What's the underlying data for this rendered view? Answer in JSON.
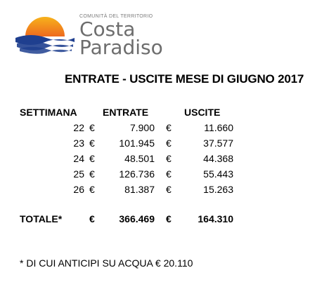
{
  "logo": {
    "subtitle": "COMUNITÀ DEL TERRITORIO",
    "word1": "Costa",
    "word2": "Paradiso",
    "colors": {
      "sun_top": "#f7b21b",
      "sun_bottom": "#ee6a1e",
      "wave": "#1f3f8f",
      "text": "#6d6d6d"
    }
  },
  "heading": "ENTRATE - USCITE MESE DI GIUGNO 2017",
  "table": {
    "headers": {
      "week": "SETTIMANA",
      "income": "ENTRATE",
      "expense": "USCITE"
    },
    "currency": "€",
    "rows": [
      {
        "week": "22",
        "income": "7.900",
        "expense": "11.660"
      },
      {
        "week": "23",
        "income": "101.945",
        "expense": "37.577"
      },
      {
        "week": "24",
        "income": "48.501",
        "expense": "44.368"
      },
      {
        "week": "25",
        "income": "126.736",
        "expense": "55.443"
      },
      {
        "week": "26",
        "income": "81.387",
        "expense": "15.263"
      }
    ],
    "total": {
      "label": "TOTALE*",
      "income": "366.469",
      "expense": "164.310"
    }
  },
  "footnote": "* DI CUI ANTICIPI SU ACQUA € 20.110"
}
